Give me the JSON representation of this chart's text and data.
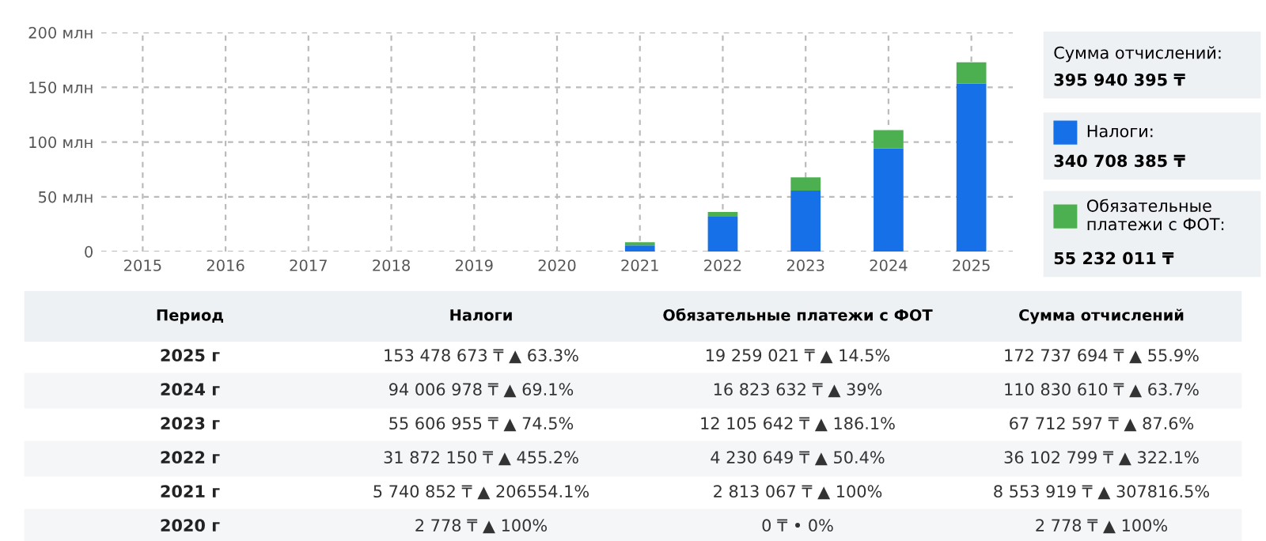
{
  "chart_data": {
    "type": "bar",
    "stacked": true,
    "grid": true,
    "legend": "right",
    "categories": [
      "2015",
      "2016",
      "2017",
      "2018",
      "2019",
      "2020",
      "2021",
      "2022",
      "2023",
      "2024",
      "2025"
    ],
    "ylim": [
      0,
      200
    ],
    "yticks": [
      0,
      {
        "value": 50,
        "label": "50 млн"
      },
      {
        "value": 100,
        "label": "100 млн"
      },
      {
        "value": 150,
        "label": "150 млн"
      },
      {
        "value": 200,
        "label": "200 млн"
      }
    ],
    "series": [
      {
        "name": "Налоги:",
        "color": "#1670e8",
        "values": [
          0,
          0,
          0,
          0,
          0,
          0.003,
          5.7,
          31.9,
          55.6,
          94.0,
          153.5
        ]
      },
      {
        "name": "Обязательные платежи с ФОТ:",
        "color": "#4cb050",
        "values": [
          0,
          0,
          0,
          0,
          0,
          0,
          2.8,
          4.2,
          12.1,
          16.8,
          19.3
        ]
      }
    ],
    "annotations": [
      "Период",
      "Налоги",
      "Обязательные платежи с ФОТ",
      "Сумма отчислений",
      "2025 г",
      "153 478 673 ₸ ▲ 63.3%",
      "19 259 021 ₸ ▲ 14.5%",
      "172 737 694 ₸ ▲ 55.9%",
      "2024 г",
      "94 006 978 ₸ ▲ 69.1%",
      "16 823 632 ₸ ▲ 39%",
      "110 830 610 ₸ ▲ 63.7%",
      "2023 г",
      "55 606 955 ₸ ▲ 74.5%",
      "12 105 642 ₸ ▲ 186.1%",
      "67 712 597 ₸ ▲ 87.6%",
      "2022 г",
      "31 872 150 ₸ ▲ 455.2%",
      "4 230 649 ₸ ▲ 50.4%",
      "36 102 799 ₸ ▲ 322.1%",
      "2021 г",
      "5 740 852 ₸ ▲ 206554.1%",
      "2 813 067 ₸ ▲ 100%",
      "8 553 919 ₸ ▲ 307816.5%",
      "2020 г",
      "2 778 ₸ ▲ 100%",
      "0 ₸ • 0%",
      "2 778 ₸ ▲ 100%",
      "Сумма отчислений:",
      "395 940 395 ₸",
      "340 708 385 ₸",
      "55 232 011 ₸"
    ]
  }
}
